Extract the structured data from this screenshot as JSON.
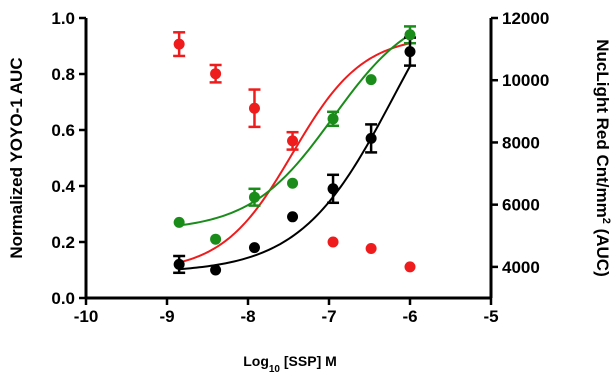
{
  "chart_data": {
    "type": "scatter",
    "xlabel": {
      "prefix": "Log",
      "sub": "10",
      "suffix": " [SSP] M"
    },
    "ylabel_left": "Normalized YOYO-1 AUC",
    "ylabel_right": {
      "prefix": "NucLight Red Cnt/mm",
      "sup": "2",
      "suffix": " (AUC)"
    },
    "xlim": [
      -10,
      -5
    ],
    "ylim_left": [
      0,
      1
    ],
    "ylim_right": [
      3000,
      12000
    ],
    "x_ticks": [
      "-10",
      "-9",
      "-8",
      "-7",
      "-6",
      "-5"
    ],
    "y_left_ticks": [
      "0.0",
      "0.2",
      "0.4",
      "0.6",
      "0.8",
      "1.0"
    ],
    "y_right_ticks": [
      "4000",
      "6000",
      "8000",
      "10000",
      "12000"
    ],
    "series": [
      {
        "color": "#ee1c1c",
        "axis": "right",
        "x": [
          -8.85,
          -8.4,
          -7.92,
          -7.45,
          -6.95,
          -6.48,
          -6.0
        ],
        "y": [
          11160,
          10210,
          9100,
          8050,
          4800,
          4590,
          4000
        ],
        "err": [
          380,
          280,
          600,
          280,
          0,
          0,
          0
        ],
        "curve": {
          "bottom": 3850,
          "top": 11450,
          "logEC50": -7.45,
          "hill": 1.0
        }
      },
      {
        "color": "#1a8c1a",
        "axis": "left",
        "x": [
          -8.85,
          -8.4,
          -7.92,
          -7.45,
          -6.95,
          -6.48,
          -6.0
        ],
        "y": [
          0.27,
          0.21,
          0.36,
          0.41,
          0.64,
          0.78,
          0.94
        ],
        "err": [
          0,
          0,
          0.03,
          0,
          0.025,
          0,
          0.03
        ],
        "curve": {
          "bottom": 0.24,
          "top": 1.05,
          "logEC50": -6.95,
          "hill": 0.85
        }
      },
      {
        "color": "#000000",
        "axis": "left",
        "x": [
          -8.85,
          -8.4,
          -7.92,
          -7.45,
          -6.95,
          -6.48,
          -6.0
        ],
        "y": [
          0.12,
          0.1,
          0.18,
          0.29,
          0.39,
          0.57,
          0.88
        ],
        "err": [
          0.03,
          0,
          0,
          0,
          0.05,
          0.05,
          0.05
        ],
        "curve": {
          "bottom": 0.09,
          "top": 1.35,
          "logEC50": -6.2,
          "hill": 0.75
        }
      }
    ]
  }
}
